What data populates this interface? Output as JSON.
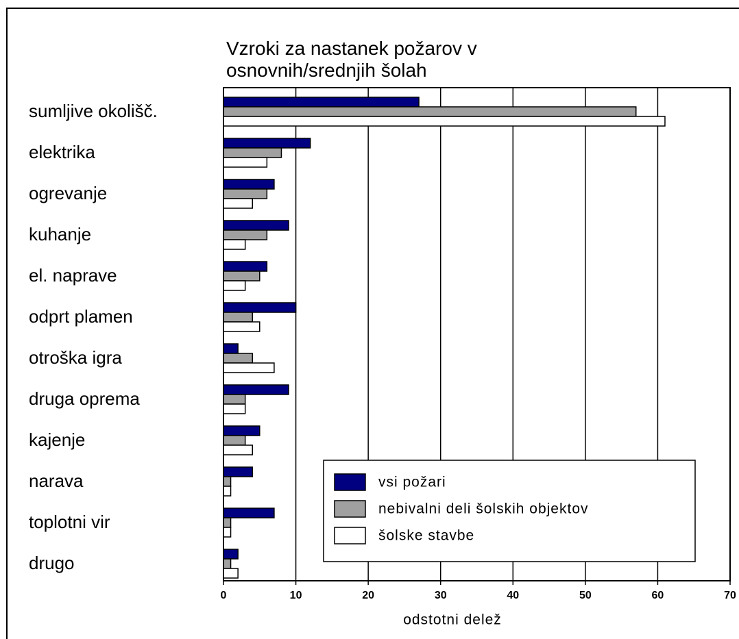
{
  "chart_data": {
    "type": "bar",
    "orientation": "horizontal",
    "title": "Vzroki za nastanek požarov v osnovnih/srednjih šolah",
    "x_label": "odstotni delež",
    "categories": [
      "sumljive okolišč.",
      "elektrika",
      "ogrevanje",
      "kuhanje",
      "el. naprave",
      "odprt plamen",
      "otroška igra",
      "druga oprema",
      "kajenje",
      "narava",
      "toplotni vir",
      "drugo"
    ],
    "series": [
      {
        "name": "vsi požari",
        "color": "#000080",
        "values": [
          27,
          12,
          7,
          9,
          6,
          10,
          2,
          9,
          5,
          4,
          7,
          2
        ]
      },
      {
        "name": "nebivalni deli šolskih objektov",
        "color": "#a0a0a0",
        "values": [
          57,
          8,
          6,
          6,
          5,
          4,
          4,
          3,
          3,
          1,
          1,
          1
        ]
      },
      {
        "name": "šolske stavbe",
        "color": "#ffffff",
        "values": [
          61,
          6,
          4,
          3,
          3,
          5,
          7,
          3,
          4,
          1,
          1,
          2
        ]
      }
    ],
    "xlim": [
      0,
      70
    ],
    "xticks": [
      0,
      10,
      20,
      30,
      40,
      50,
      60,
      70
    ],
    "grid": true
  }
}
